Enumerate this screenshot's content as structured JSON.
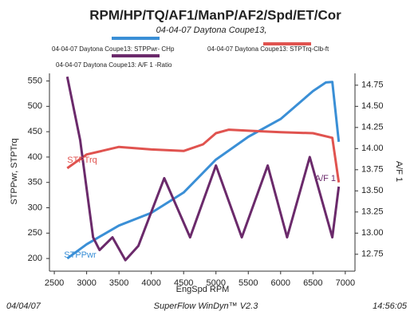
{
  "chart_data": {
    "type": "line",
    "title": "RPM/HP/TQ/AF1/ManP/AF2/Spd/ET/Cor",
    "subtitle": "04-04-07 Daytona Coupe13,",
    "xlabel": "EngSpd RPM",
    "ylabel": "STPPwr, STPTrq",
    "y2label": "A/F 1",
    "footer_left": "04/04/07",
    "footer_center": "SuperFlow WinDyn™ V2.3",
    "footer_right": "14:56:05",
    "xlim": [
      2425,
      7150
    ],
    "xticks": [
      2500,
      3000,
      3500,
      4000,
      4500,
      5000,
      5500,
      6000,
      6500,
      7000
    ],
    "ylim": [
      175,
      565
    ],
    "yticks": [
      200,
      250,
      300,
      350,
      400,
      450,
      500,
      550
    ],
    "y2lim": [
      12.55,
      14.89
    ],
    "y2ticks": [
      12.75,
      {
        "value": 13,
        "label": "13.00"
      },
      13.25,
      {
        "value": 13.5,
        "label": "13.50"
      },
      13.75,
      {
        "value": 14,
        "label": "14.00"
      },
      14.25,
      {
        "value": 14.5,
        "label": "14.50"
      },
      14.75
    ],
    "series": [
      {
        "name": "04-04-07 Daytona Coupe13: STPPwr- CHp",
        "label": "STPPwr",
        "color": "#3a8fd6",
        "x": [
          2700,
          3000,
          3500,
          4000,
          4500,
          5000,
          5500,
          6000,
          6500,
          6700,
          6800,
          6900
        ],
        "values": [
          200,
          228,
          265,
          290,
          330,
          395,
          440,
          475,
          530,
          547,
          548,
          430
        ]
      },
      {
        "name": "04-04-07 Daytona Coupe13: STPTrq-Clb-ft",
        "label": "STPTrq",
        "color": "#e0534f",
        "x": [
          2700,
          3000,
          3500,
          3700,
          4000,
          4500,
          4800,
          5000,
          5200,
          5500,
          6000,
          6500,
          6800,
          6900
        ],
        "values": [
          378,
          405,
          420,
          418,
          415,
          412,
          425,
          447,
          454,
          452,
          449,
          447,
          438,
          350
        ]
      },
      {
        "name": "04-04-07 Daytona Coupe13: A/F 1 -Ratio",
        "label": "A/F 1",
        "color": "#6b2a6b",
        "axis": "y2",
        "x": [
          2700,
          2900,
          3100,
          3200,
          3400,
          3600,
          3800,
          4200,
          4600,
          5000,
          5400,
          5800,
          6100,
          6450,
          6800,
          6900
        ],
        "values": [
          14.85,
          14.1,
          12.95,
          12.8,
          12.95,
          12.68,
          12.85,
          13.65,
          12.95,
          13.8,
          12.95,
          13.8,
          12.95,
          13.9,
          12.95,
          13.55
        ]
      }
    ]
  }
}
